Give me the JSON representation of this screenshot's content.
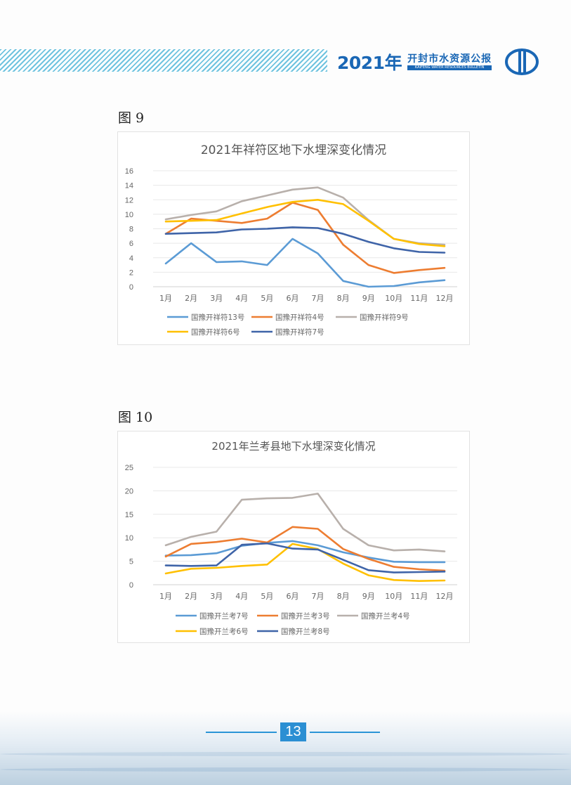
{
  "header": {
    "year": "2021年",
    "title_cn": "开封市水资源公报",
    "title_en": "KAIFENG WATER RESOURCES BULLETIN"
  },
  "figures": [
    {
      "label": "图 9"
    },
    {
      "label": "图 10"
    }
  ],
  "page_number": "13",
  "colors": {
    "blue": "#5b9bd5",
    "orange": "#ed7d31",
    "gray": "#b8b0ab",
    "yellow": "#ffc000",
    "dark_blue": "#3f64a8",
    "header_blue": "#1a67b5"
  },
  "chart_data": [
    {
      "type": "line",
      "title": "2021年祥符区地下水埋深变化情况",
      "categories": [
        "1月",
        "2月",
        "3月",
        "4月",
        "5月",
        "6月",
        "7月",
        "8月",
        "9月",
        "10月",
        "11月",
        "12月"
      ],
      "ylim": [
        0,
        16
      ],
      "yticks": [
        0,
        2,
        4,
        6,
        8,
        10,
        12,
        14,
        16
      ],
      "grid": true,
      "legend": "bottom",
      "series": [
        {
          "name": "国豫开祥符13号",
          "color": "#5b9bd5",
          "values": [
            3.2,
            6.0,
            3.4,
            3.5,
            3.0,
            6.6,
            4.6,
            0.8,
            0.0,
            0.1,
            0.6,
            0.9
          ]
        },
        {
          "name": "国豫开祥符4号",
          "color": "#ed7d31",
          "values": [
            7.3,
            9.4,
            9.1,
            8.8,
            9.4,
            11.6,
            10.6,
            5.8,
            3.0,
            1.9,
            2.3,
            2.6
          ]
        },
        {
          "name": "国豫开祥符9号",
          "color": "#b8b0ab",
          "values": [
            9.3,
            9.9,
            10.4,
            11.8,
            12.6,
            13.4,
            13.7,
            12.3,
            9.2,
            6.6,
            6.0,
            5.8
          ]
        },
        {
          "name": "国豫开祥符6号",
          "color": "#ffc000",
          "values": [
            9.0,
            9.1,
            9.2,
            10.1,
            11.0,
            11.7,
            12.0,
            11.4,
            9.1,
            6.6,
            5.9,
            5.6
          ]
        },
        {
          "name": "国豫开祥符7号",
          "color": "#3f64a8",
          "values": [
            7.3,
            7.4,
            7.5,
            7.9,
            8.0,
            8.2,
            8.1,
            7.3,
            6.2,
            5.3,
            4.8,
            4.7
          ]
        }
      ]
    },
    {
      "type": "line",
      "title": "2021年兰考县地下水埋深变化情况",
      "categories": [
        "1月",
        "2月",
        "3月",
        "4月",
        "5月",
        "6月",
        "7月",
        "8月",
        "9月",
        "10月",
        "11月",
        "12月"
      ],
      "ylim": [
        0,
        25
      ],
      "yticks": [
        0,
        5,
        10,
        15,
        20,
        25
      ],
      "grid": true,
      "legend": "bottom",
      "series": [
        {
          "name": "国豫开兰考7号",
          "color": "#5b9bd5",
          "values": [
            6.2,
            6.3,
            6.7,
            8.3,
            8.9,
            9.3,
            8.4,
            6.9,
            5.8,
            4.9,
            4.8,
            4.8
          ]
        },
        {
          "name": "国豫开兰考3号",
          "color": "#ed7d31",
          "values": [
            6.0,
            8.7,
            9.1,
            9.8,
            9.0,
            12.3,
            11.9,
            7.6,
            5.5,
            3.8,
            3.3,
            3.0
          ]
        },
        {
          "name": "国豫开兰考4号",
          "color": "#b8b0ab",
          "values": [
            8.4,
            10.2,
            11.3,
            18.1,
            18.4,
            18.5,
            19.4,
            11.9,
            8.4,
            7.3,
            7.5,
            7.1
          ]
        },
        {
          "name": "国豫开兰考6号",
          "color": "#ffc000",
          "values": [
            2.4,
            3.4,
            3.6,
            4.0,
            4.3,
            8.7,
            7.6,
            4.5,
            2.0,
            1.0,
            0.8,
            0.9
          ]
        },
        {
          "name": "国豫开兰考8号",
          "color": "#3f64a8",
          "values": [
            4.1,
            4.0,
            4.1,
            8.5,
            8.8,
            7.7,
            7.5,
            5.3,
            3.1,
            2.6,
            2.7,
            2.8
          ]
        }
      ]
    }
  ]
}
